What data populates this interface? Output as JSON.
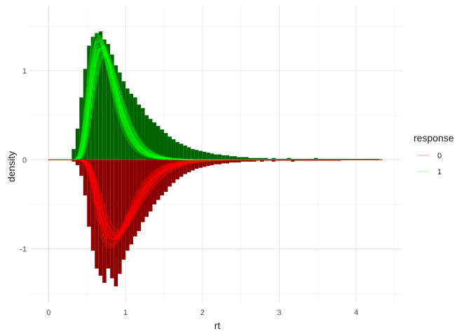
{
  "chart_data": {
    "type": "bar",
    "title": "",
    "xlabel": "rt",
    "ylabel": "density",
    "xlim": [
      -0.25,
      4.6
    ],
    "ylim": [
      -1.6,
      1.73
    ],
    "x_ticks": [
      0,
      1,
      2,
      3,
      4
    ],
    "y_ticks": [
      -1,
      0,
      1
    ],
    "bin_width": 0.05,
    "grid": true,
    "legend": {
      "title": "response",
      "placement": "right",
      "entries": [
        {
          "label": "0",
          "color": "#ff0000"
        },
        {
          "label": "1",
          "color": "#00ff00"
        }
      ]
    },
    "colors": {
      "upper_bars": "#006400",
      "lower_bars": "#8b0000",
      "upper_curves": "#00ff00",
      "lower_curves": "#ff0000"
    },
    "series": [
      {
        "name": "1",
        "x_start": 0.3,
        "values": [
          0.12,
          0.35,
          0.7,
          1.02,
          1.28,
          1.38,
          1.42,
          1.44,
          1.35,
          1.3,
          1.18,
          1.06,
          0.98,
          0.88,
          0.8,
          0.74,
          0.7,
          0.62,
          0.58,
          0.5,
          0.46,
          0.42,
          0.38,
          0.34,
          0.3,
          0.26,
          0.23,
          0.2,
          0.18,
          0.16,
          0.14,
          0.12,
          0.11,
          0.1,
          0.09,
          0.08,
          0.07,
          0.06,
          0.06,
          0.05,
          0.05,
          0.04,
          0.04,
          0.03,
          0.03,
          0.03,
          0.02,
          0.02,
          0.02,
          0.02,
          0.02,
          0.01,
          0.02,
          0.01,
          0.01,
          0.01,
          0.02,
          0.01,
          0.01,
          0.01,
          0.01,
          0.01,
          0.01,
          0.02,
          0.01,
          0.01,
          0.01,
          0.01,
          0.01,
          0.01,
          0.01,
          0.01,
          0.01,
          0.01,
          0.01,
          0.01,
          0.01,
          0.01,
          0.01,
          0.01
        ]
      },
      {
        "name": "0",
        "x_start": 0.3,
        "values": [
          -0.02,
          -0.06,
          -0.18,
          -0.4,
          -0.75,
          -1.02,
          -1.22,
          -1.3,
          -1.38,
          -1.22,
          -1.33,
          -1.42,
          -1.28,
          -1.12,
          -1.02,
          -0.95,
          -0.86,
          -0.8,
          -0.7,
          -0.64,
          -0.58,
          -0.5,
          -0.45,
          -0.4,
          -0.36,
          -0.3,
          -0.26,
          -0.22,
          -0.19,
          -0.16,
          -0.14,
          -0.12,
          -0.1,
          -0.09,
          -0.08,
          -0.07,
          -0.06,
          -0.05,
          -0.05,
          -0.04,
          -0.04,
          -0.03,
          -0.03,
          -0.03,
          -0.02,
          -0.02,
          -0.02,
          -0.02,
          -0.01,
          -0.02,
          -0.01,
          -0.01,
          -0.02,
          -0.01,
          -0.01,
          -0.01,
          -0.01,
          -0.02,
          -0.01,
          -0.01,
          -0.01,
          -0.01,
          -0.01,
          -0.01,
          -0.01,
          -0.01,
          -0.01,
          -0.01,
          -0.01,
          -0.01
        ]
      }
    ]
  }
}
